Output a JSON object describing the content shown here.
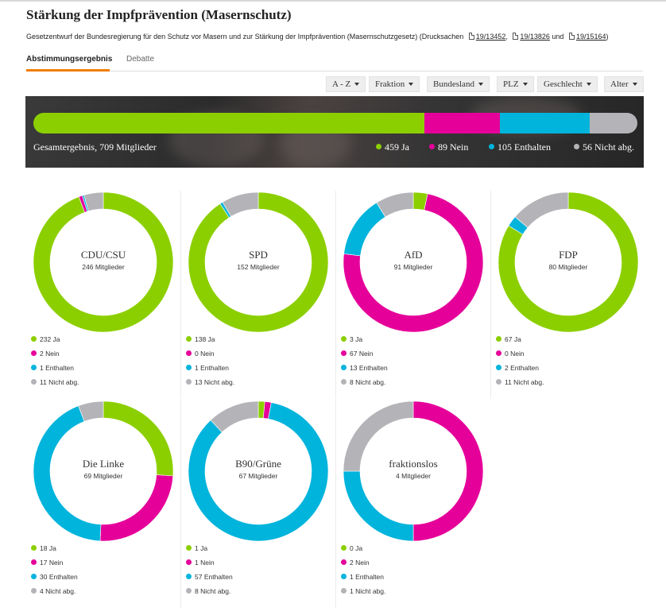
{
  "page": {
    "title": "Stärkung der Impfprävention (Masernschutz)",
    "subtitle_text": "Gesetzentwurf der Bundesregierung für den Schutz vor Masern und zur Stärkung der Impfprävention (Masernschutzgesetz) (Drucksachen",
    "subtitle_and": "und",
    "subtitle_close": ")",
    "drucksachen": [
      "19/13452",
      "19/13826",
      "19/15164"
    ]
  },
  "tabs": [
    {
      "label": "Abstimmungsergebnis",
      "active": true
    },
    {
      "label": "Debatte",
      "active": false
    }
  ],
  "filters": [
    "A - Z",
    "Fraktion",
    "Bundesland",
    "PLZ",
    "Geschlecht",
    "Alter"
  ],
  "colors": {
    "ja": "#8ccf00",
    "nein": "#e5009a",
    "enthalten": "#00b4dc",
    "nicht": "#b4b4b8"
  },
  "total": {
    "label": "Gesamtergebnis, 709 Mitglieder",
    "legend": [
      "459 Ja",
      "89 Nein",
      "105 Enthalten",
      "56 Nicht abg."
    ]
  },
  "chart_data": {
    "type": "pie",
    "categories": [
      "Ja",
      "Nein",
      "Enthalten",
      "Nicht abg."
    ],
    "total": {
      "members": 709,
      "values": [
        459,
        89,
        105,
        56
      ]
    },
    "parties": [
      {
        "name": "CDU/CSU",
        "members_label": "246 Mitglieder",
        "values": [
          232,
          2,
          1,
          11
        ],
        "legend": [
          "232 Ja",
          "2 Nein",
          "1 Enthalten",
          "11 Nicht abg."
        ]
      },
      {
        "name": "SPD",
        "members_label": "152 Mitglieder",
        "values": [
          138,
          0,
          1,
          13
        ],
        "legend": [
          "138 Ja",
          "0 Nein",
          "1 Enthalten",
          "13 Nicht abg."
        ]
      },
      {
        "name": "AfD",
        "members_label": "91 Mitglieder",
        "values": [
          3,
          67,
          13,
          8
        ],
        "legend": [
          "3 Ja",
          "67 Nein",
          "13 Enthalten",
          "8 Nicht abg."
        ]
      },
      {
        "name": "FDP",
        "members_label": "80 Mitglieder",
        "values": [
          67,
          0,
          2,
          11
        ],
        "legend": [
          "67 Ja",
          "0 Nein",
          "2 Enthalten",
          "11 Nicht abg."
        ]
      },
      {
        "name": "Die Linke",
        "members_label": "69 Mitglieder",
        "values": [
          18,
          17,
          30,
          4
        ],
        "legend": [
          "18 Ja",
          "17 Nein",
          "30 Enthalten",
          "4 Nicht abg."
        ]
      },
      {
        "name": "B90/Grüne",
        "members_label": "67 Mitglieder",
        "values": [
          1,
          1,
          57,
          8
        ],
        "legend": [
          "1 Ja",
          "1 Nein",
          "57 Enthalten",
          "8 Nicht abg."
        ]
      },
      {
        "name": "fraktionslos",
        "members_label": "4 Mitglieder",
        "values": [
          0,
          2,
          1,
          1
        ],
        "legend": [
          "0 Ja",
          "2 Nein",
          "1 Enthalten",
          "1 Nicht abg."
        ]
      }
    ]
  }
}
